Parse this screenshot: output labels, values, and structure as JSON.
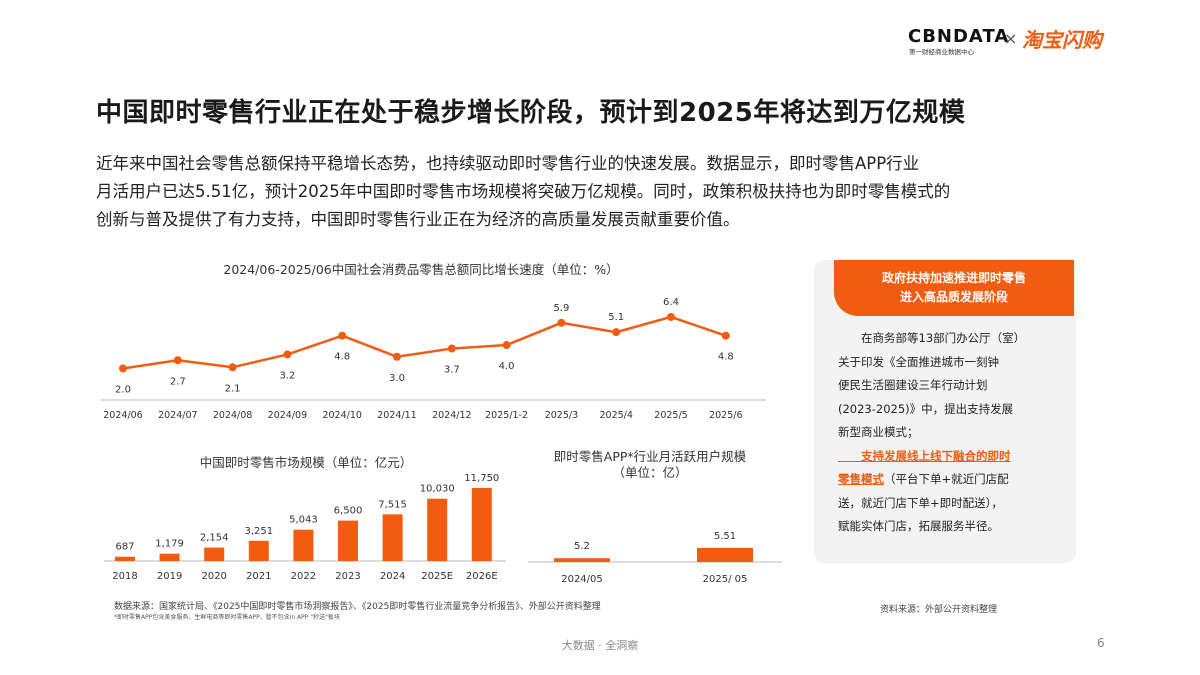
{
  "logo": {
    "cbn": "CBNDATA",
    "cbn_sub": "第一财经商业数据中心",
    "separator": "×",
    "partner": "淘宝闪购"
  },
  "title": "中国即时零售行业正在处于稳步增长阶段，预计到2025年将达到万亿规模",
  "intro_lines": [
    "近年来中国社会零售总额保持平稳增长态势，也持续驱动即时零售行业的快速发展。数据显示，即时零售APP行业",
    "月活用户已达5.51亿，预计2025年中国即时零售市场规模将突破万亿规模。同时，政策积极扶持也为即时零售模式的",
    "创新与普及提供了有力支持，中国即时零售行业正在为经济的高质量发展贡献重要价值。"
  ],
  "chart_data": [
    {
      "type": "line",
      "title": "2024/06-2025/06中国社会消费品零售总额同比增长速度（单位：%）",
      "categories": [
        "2024/06",
        "2024/07",
        "2024/08",
        "2024/09",
        "2024/10",
        "2024/11",
        "2024/12",
        "2025/1-2",
        "2025/3",
        "2025/4",
        "2025/5",
        "2025/6"
      ],
      "values": [
        2.0,
        2.7,
        2.1,
        3.2,
        4.8,
        3.0,
        3.7,
        4.0,
        5.9,
        5.1,
        6.4,
        4.8
      ],
      "ylim": [
        0,
        7
      ],
      "grid": false,
      "color": "#f25c10"
    },
    {
      "type": "bar",
      "title": "中国即时零售市场规模（单位：亿元）",
      "categories": [
        "2018",
        "2019",
        "2020",
        "2021",
        "2022",
        "2023",
        "2024",
        "2025E",
        "2026E"
      ],
      "values": [
        687,
        1179,
        2154,
        3251,
        5043,
        6500,
        7515,
        10030,
        11750
      ],
      "labels": [
        "687",
        "1,179",
        "2,154",
        "3,251",
        "5,043",
        "6,500",
        "7,515",
        "10,030",
        "11,750"
      ],
      "ylim": [
        0,
        12000
      ],
      "grid": false,
      "color": "#f25c10"
    },
    {
      "type": "bar",
      "title": "即时零售APP*行业月活跃用户规模",
      "subtitle": "（单位：亿）",
      "categories": [
        "2024/05",
        "2025/ 05"
      ],
      "values": [
        5.2,
        5.51
      ],
      "labels": [
        "5.2",
        "5.51"
      ],
      "ylim": [
        4.9,
        6.0
      ],
      "grid": false,
      "color": "#f25c10"
    }
  ],
  "sidebox": {
    "head_line1": "政府扶持加速推进即时零售",
    "head_line2": "进入高品质发展阶段",
    "body_lines": [
      "　　在商务部等13部门办公厅（室）",
      "关于印发《全面推进城市一刻钟",
      "便民生活圈建设三年行动计划",
      "(2023-2025)》中，提出支持发展",
      "新型商业模式；"
    ],
    "highlight_line1": "　　支持发展线上线下融合的即时",
    "highlight_line2": "零售模式",
    "after_highlight": "（平台下单+就近门店配",
    "tail_lines": [
      "送，就近门店下单+即时配送），",
      "赋能实体门店，拓展服务半径。"
    ]
  },
  "sources": {
    "left": "数据来源：国家统计局、《2025中国即时零售市场洞察报告》、《2025即时零售行业流量竞争分析报告》、外部公开资料整理",
    "left_note": "*即时零售APP包含美食服务、生鲜电商等即时零售APP，暂不包含in APP \"秒送\"板块",
    "right": "资料来源：外部公开资料整理"
  },
  "footer": "大数据 · 全洞察",
  "page_number": "6",
  "colors": {
    "accent": "#f25c10",
    "panel": "#f3f3f3"
  }
}
